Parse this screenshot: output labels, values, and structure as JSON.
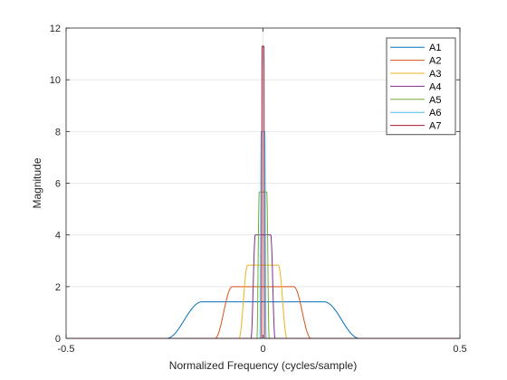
{
  "chart_data": {
    "type": "line",
    "title": "",
    "xlabel": "Normalized Frequency (cycles/sample)",
    "ylabel": "Magnitude",
    "xlim": [
      -0.5,
      0.5
    ],
    "ylim": [
      0,
      12
    ],
    "x_ticks": [
      -0.5,
      0,
      0.5
    ],
    "x_tick_labels": [
      "-0.5",
      "0",
      "0.5"
    ],
    "y_ticks": [
      0,
      2,
      4,
      6,
      8,
      10,
      12
    ],
    "y_tick_labels": [
      "0",
      "2",
      "4",
      "6",
      "8",
      "10",
      "12"
    ],
    "grid": true,
    "legend_position": "top-right",
    "series": [
      {
        "name": "A1",
        "color": "#0072BD",
        "peak": 1.414,
        "half_width": 0.2,
        "edge": 0.045
      },
      {
        "name": "A2",
        "color": "#D95319",
        "peak": 2.0,
        "half_width": 0.1,
        "edge": 0.022
      },
      {
        "name": "A3",
        "color": "#EDB120",
        "peak": 2.828,
        "half_width": 0.05,
        "edge": 0.011
      },
      {
        "name": "A4",
        "color": "#7E2F8E",
        "peak": 4.0,
        "half_width": 0.025,
        "edge": 0.0055
      },
      {
        "name": "A5",
        "color": "#77AC30",
        "peak": 5.657,
        "half_width": 0.0125,
        "edge": 0.003
      },
      {
        "name": "A6",
        "color": "#4DBEEE",
        "peak": 8.0,
        "half_width": 0.00625,
        "edge": 0.0015
      },
      {
        "name": "A7",
        "color": "#A2142F",
        "peak": 11.3,
        "half_width": 0.003,
        "edge": 0.0008
      }
    ]
  }
}
